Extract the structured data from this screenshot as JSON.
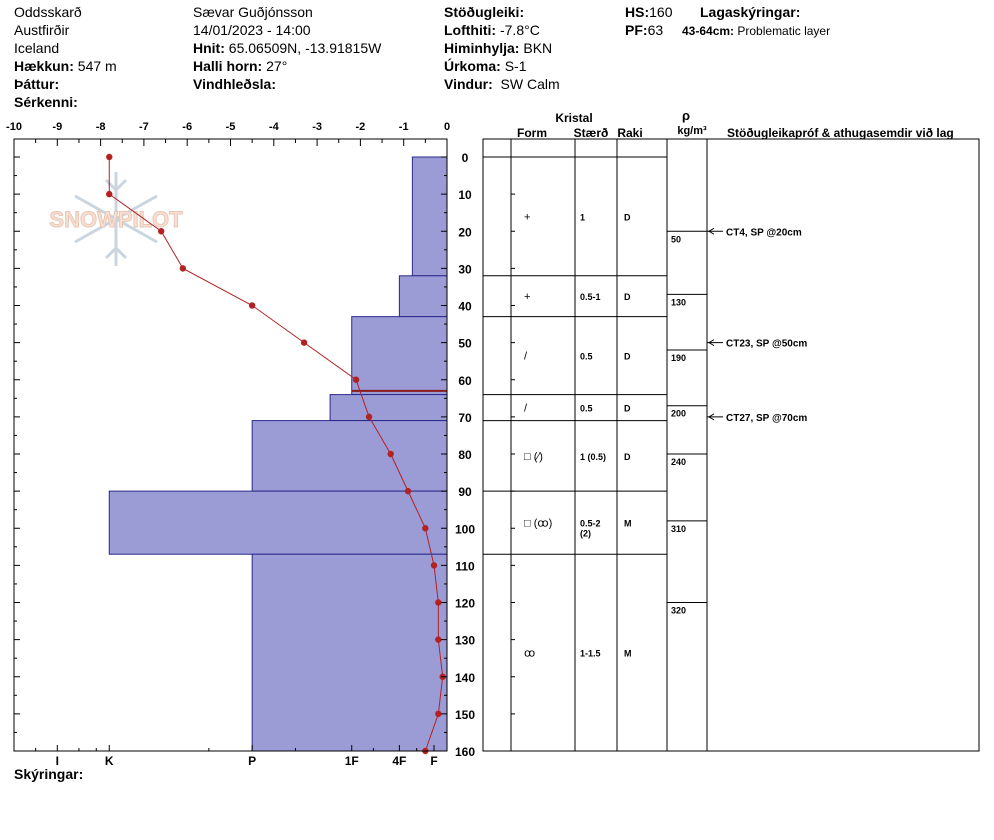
{
  "header": {
    "location": "Oddsskarð",
    "region": "Austfirðir",
    "country": "Iceland",
    "elevation_label": "Hækkun:",
    "elevation_value": "547 m",
    "aspect_label": "Þáttur:",
    "features_label": "Sérkenni:",
    "observer": "Sævar Guðjónsson",
    "datetime": "14/01/2023 - 14:00",
    "coords_label": "Hnit:",
    "coords_value": "65.06509N, -13.91815W",
    "slope_label": "Halli horn:",
    "slope_value": "27°",
    "wind_loading_label": "Vindhleðsla:",
    "stability_label": "Stöðugleiki:",
    "air_temp_label": "Lofthiti:",
    "air_temp_value": "-7.8°C",
    "sky_label": "Himinhylja:",
    "sky_value": "BKN",
    "precip_label": "Úrkoma:",
    "precip_value": "S-1",
    "wind_label": "Vindur:",
    "wind_value": "SW Calm",
    "hs_label": "HS:",
    "hs_value": "160",
    "pf_label": "PF:",
    "pf_value": "63",
    "layer_notes_label": "Lagaskýringar:",
    "layer_note_range": "43-64cm:",
    "layer_note_text": "Problematic layer"
  },
  "footer": {
    "notes_label": "Skýringar:"
  },
  "watermark": "SNOWPILOT",
  "columns": {
    "crystal": "Kristal",
    "form": "Form",
    "size": "Stærð",
    "moisture": "Raki",
    "rho": "ρ",
    "density_unit": "kg/m³",
    "tests": "Stöðugleikapróf & athugasemdir við lag"
  },
  "chart_data": {
    "type": "snow-profile",
    "temp_axis": {
      "range": [
        -10,
        0
      ],
      "ticks": [
        "-10",
        "-9",
        "-8",
        "-7",
        "-6",
        "-5",
        "-4",
        "-3",
        "-2",
        "-1",
        "0"
      ]
    },
    "depth_axis": {
      "range": [
        0,
        160
      ],
      "ticks": [
        "0",
        "10",
        "20",
        "30",
        "40",
        "50",
        "60",
        "70",
        "80",
        "90",
        "100",
        "110",
        "120",
        "130",
        "140",
        "150",
        "160"
      ]
    },
    "hardness_labels": [
      "I",
      "K",
      "P",
      "1F",
      "4F",
      "F"
    ],
    "temperature_profile": [
      {
        "depth": 0,
        "temp": -7.8
      },
      {
        "depth": 10,
        "temp": -7.8
      },
      {
        "depth": 20,
        "temp": -6.6
      },
      {
        "depth": 30,
        "temp": -6.1
      },
      {
        "depth": 40,
        "temp": -4.5
      },
      {
        "depth": 50,
        "temp": -3.3
      },
      {
        "depth": 60,
        "temp": -2.1
      },
      {
        "depth": 70,
        "temp": -1.8
      },
      {
        "depth": 80,
        "temp": -1.3
      },
      {
        "depth": 90,
        "temp": -0.9
      },
      {
        "depth": 100,
        "temp": -0.5
      },
      {
        "depth": 110,
        "temp": -0.3
      },
      {
        "depth": 120,
        "temp": -0.2
      },
      {
        "depth": 130,
        "temp": -0.2
      },
      {
        "depth": 140,
        "temp": -0.1
      },
      {
        "depth": 150,
        "temp": -0.2
      },
      {
        "depth": 160,
        "temp": -0.5
      }
    ],
    "layers": [
      {
        "top": 0,
        "bottom": 32,
        "hardness": -0.8,
        "form": "+",
        "size": "1",
        "moisture": "D"
      },
      {
        "top": 32,
        "bottom": 43,
        "hardness": -1.1,
        "form": "+",
        "size": "0.5-1",
        "moisture": "D"
      },
      {
        "top": 43,
        "bottom": 64,
        "hardness": -2.2,
        "form": "/",
        "size": "0.5",
        "moisture": "D"
      },
      {
        "top": 64,
        "bottom": 71,
        "hardness": -2.7,
        "form": "/",
        "size": "0.5",
        "moisture": "D"
      },
      {
        "top": 71,
        "bottom": 90,
        "hardness": -4.5,
        "form": "□ (⁄)",
        "size": "1 (0.5)",
        "moisture": "D"
      },
      {
        "top": 90,
        "bottom": 107,
        "hardness": -7.8,
        "form": "□ (ꝏ)",
        "size": "0.5-2 (2)",
        "moisture": "M"
      },
      {
        "top": 107,
        "bottom": 160,
        "hardness": -4.5,
        "form": "ꝏ",
        "size": "1-1.5",
        "moisture": "M"
      }
    ],
    "problematic_layer_depth": 63,
    "density": [
      {
        "depth": 20,
        "value": "50"
      },
      {
        "depth": 37,
        "value": "130"
      },
      {
        "depth": 52,
        "value": "190"
      },
      {
        "depth": 67,
        "value": "200"
      },
      {
        "depth": 80,
        "value": "240"
      },
      {
        "depth": 98,
        "value": "310"
      },
      {
        "depth": 120,
        "value": "320"
      }
    ],
    "tests": [
      {
        "depth": 20,
        "text": "CT4, SP @20cm"
      },
      {
        "depth": 50,
        "text": "CT23, SP @50cm"
      },
      {
        "depth": 70,
        "text": "CT27, SP @70cm"
      }
    ]
  },
  "colors": {
    "bar_fill": "#9B9BD6",
    "bar_stroke": "#2A2A8A",
    "temp_line": "#B22222",
    "problem_line": "#8B1A1A"
  }
}
